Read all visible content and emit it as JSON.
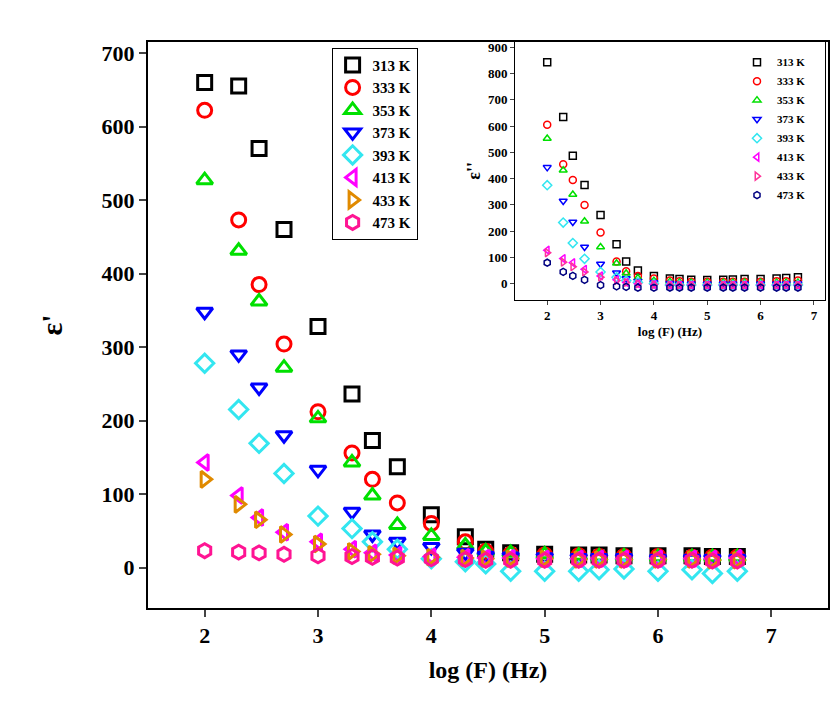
{
  "chart_data": [
    {
      "type": "scatter",
      "xlabel": "log (F) (Hz)",
      "ylabel": "ε'",
      "x": [
        2,
        2.3,
        2.48,
        2.7,
        3,
        3.3,
        3.48,
        3.7,
        4,
        4.3,
        4.48,
        4.7,
        5,
        5.3,
        5.48,
        5.7,
        6,
        6.3,
        6.48,
        6.7
      ],
      "xlim": [
        1.5,
        7.5
      ],
      "xticks": [
        2,
        3,
        4,
        5,
        6,
        7
      ],
      "ylim": [
        -55,
        715
      ],
      "yticks": [
        0,
        100,
        200,
        300,
        400,
        500,
        600,
        700
      ],
      "legend": "upper center",
      "series": [
        {
          "name": "313 K",
          "color": "#000000",
          "marker": "square-open",
          "values": [
            660,
            655,
            570,
            460,
            328,
            236,
            173,
            137,
            72,
            42,
            25,
            20,
            18,
            17,
            17,
            16,
            16,
            16,
            15,
            15
          ]
        },
        {
          "name": "333 K",
          "color": "#ff0000",
          "marker": "circle-open",
          "values": [
            622,
            473,
            385,
            304,
            212,
            156,
            120,
            88,
            60,
            35,
            22,
            18,
            17,
            16,
            15,
            15,
            15,
            14,
            14,
            14
          ]
        },
        {
          "name": "353 K",
          "color": "#00e000",
          "marker": "triangle-up-open",
          "values": [
            527,
            431,
            362,
            272,
            203,
            143,
            98,
            58,
            43,
            30,
            22,
            20,
            18,
            16,
            15,
            15,
            14,
            14,
            14,
            14
          ]
        },
        {
          "name": "373 K",
          "color": "#0000ff",
          "marker": "triangle-down-open",
          "values": [
            348,
            290,
            245,
            180,
            133,
            76,
            45,
            35,
            28,
            20,
            16,
            15,
            14,
            13,
            13,
            13,
            12,
            12,
            12,
            12
          ]
        },
        {
          "name": "393 K",
          "color": "#33e6f0",
          "marker": "diamond-open",
          "values": [
            278,
            215,
            169,
            128,
            70,
            53,
            35,
            25,
            12,
            8,
            5,
            -5,
            -5,
            -5,
            -3,
            -2,
            -5,
            -3,
            -8,
            -5
          ]
        },
        {
          "name": "413 K",
          "color": "#ff00ff",
          "marker": "triangle-left-open",
          "values": [
            143,
            98,
            68,
            48,
            35,
            25,
            20,
            17,
            15,
            14,
            13,
            13,
            12,
            12,
            12,
            12,
            12,
            12,
            12,
            13
          ]
        },
        {
          "name": "433 K",
          "color": "#e08a00",
          "marker": "triangle-right-open",
          "values": [
            120,
            86,
            65,
            45,
            32,
            22,
            18,
            16,
            14,
            13,
            12,
            12,
            12,
            11,
            11,
            11,
            11,
            11,
            10,
            10
          ]
        },
        {
          "name": "473 K",
          "color": "#ff1493",
          "marker": "hexagon-open",
          "values": [
            23,
            21,
            20,
            18,
            16,
            15,
            14,
            13,
            12,
            11,
            10,
            10,
            10,
            10,
            10,
            10,
            10,
            10,
            9,
            9
          ]
        }
      ]
    },
    {
      "type": "scatter",
      "xlabel": "log (F) (Hz)",
      "ylabel": "ε''",
      "x": [
        2,
        2.3,
        2.48,
        2.7,
        3,
        3.3,
        3.48,
        3.7,
        4,
        4.3,
        4.48,
        4.7,
        5,
        5.3,
        5.48,
        5.7,
        6,
        6.3,
        6.48,
        6.7
      ],
      "xlim": [
        1.4,
        7.2
      ],
      "xticks": [
        2,
        3,
        4,
        5,
        6,
        7
      ],
      "ylim": [
        -60,
        920
      ],
      "yticks": [
        0,
        100,
        200,
        300,
        400,
        500,
        600,
        700,
        800,
        900
      ],
      "legend": "upper right",
      "series": [
        {
          "name": "313 K",
          "color": "#000000",
          "marker": "square-open",
          "values": [
            843,
            635,
            487,
            376,
            262,
            150,
            85,
            50,
            30,
            20,
            18,
            15,
            14,
            15,
            16,
            18,
            18,
            20,
            22,
            25
          ]
        },
        {
          "name": "333 K",
          "color": "#ff0000",
          "marker": "circle-open",
          "values": [
            605,
            455,
            395,
            300,
            195,
            85,
            48,
            30,
            20,
            12,
            10,
            8,
            8,
            8,
            8,
            8,
            8,
            10,
            10,
            12
          ]
        },
        {
          "name": "353 K",
          "color": "#00e000",
          "marker": "triangle-up-open",
          "values": [
            553,
            432,
            340,
            238,
            140,
            78,
            40,
            22,
            12,
            8,
            6,
            5,
            5,
            5,
            5,
            5,
            5,
            5,
            5,
            5
          ]
        },
        {
          "name": "373 K",
          "color": "#0000ff",
          "marker": "triangle-down-open",
          "values": [
            443,
            315,
            235,
            140,
            75,
            42,
            20,
            10,
            5,
            2,
            0,
            0,
            0,
            0,
            0,
            0,
            0,
            0,
            0,
            0
          ]
        },
        {
          "name": "393 K",
          "color": "#33e6f0",
          "marker": "diamond-open",
          "values": [
            375,
            233,
            155,
            95,
            45,
            25,
            12,
            5,
            0,
            -5,
            -5,
            -5,
            -5,
            -5,
            -5,
            -5,
            -5,
            -5,
            -5,
            -5
          ]
        },
        {
          "name": "413 K",
          "color": "#ff00ff",
          "marker": "triangle-left-open",
          "values": [
            128,
            96,
            80,
            55,
            30,
            15,
            5,
            0,
            -3,
            -5,
            -5,
            -5,
            -5,
            -5,
            -5,
            -5,
            -5,
            -5,
            -5,
            -5
          ]
        },
        {
          "name": "433 K",
          "color": "#ff3399",
          "marker": "triangle-right-open",
          "values": [
            118,
            82,
            65,
            45,
            25,
            12,
            5,
            0,
            -3,
            -5,
            -5,
            -5,
            -5,
            -5,
            -5,
            -5,
            -5,
            -5,
            -5,
            -5
          ]
        },
        {
          "name": "473 K",
          "color": "#000080",
          "marker": "hexagon-open",
          "values": [
            80,
            45,
            30,
            15,
            -5,
            -10,
            -12,
            -15,
            -15,
            -15,
            -15,
            -15,
            -15,
            -15,
            -15,
            -15,
            -15,
            -15,
            -15,
            -15
          ]
        }
      ]
    }
  ]
}
